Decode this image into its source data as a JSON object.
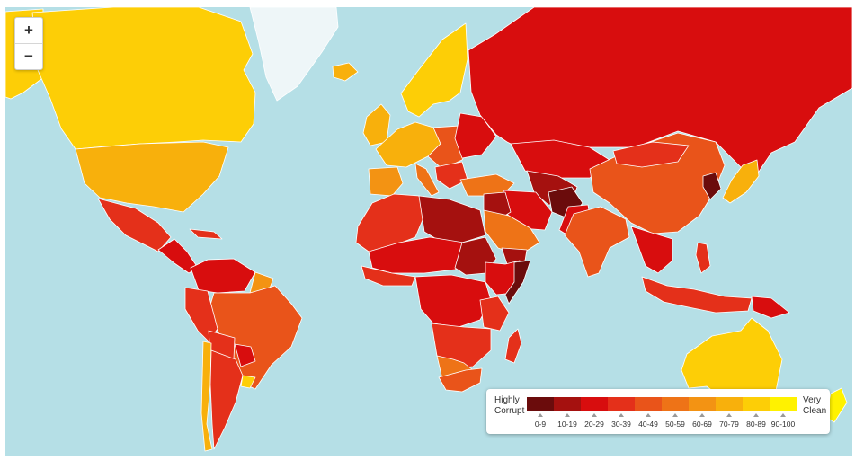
{
  "zoom": {
    "in_label": "+",
    "out_label": "−"
  },
  "legend": {
    "low_label_line1": "Highly",
    "low_label_line2": "Corrupt",
    "high_label_line1": "Very",
    "high_label_line2": "Clean",
    "bins": [
      {
        "label": "0-9",
        "color": "#6b0c0c"
      },
      {
        "label": "10-19",
        "color": "#a5110f"
      },
      {
        "label": "20-29",
        "color": "#d80d0e"
      },
      {
        "label": "30-39",
        "color": "#e4301a"
      },
      {
        "label": "40-49",
        "color": "#e9541a"
      },
      {
        "label": "50-59",
        "color": "#ee7317"
      },
      {
        "label": "60-69",
        "color": "#f39313"
      },
      {
        "label": "70-79",
        "color": "#f8b00c"
      },
      {
        "label": "80-89",
        "color": "#fdce06"
      },
      {
        "label": "90-100",
        "color": "#fff200"
      }
    ]
  },
  "colors": {
    "ocean": "#b5dfe6",
    "greenland": "#eef6f8",
    "border": "#ffffff"
  }
}
